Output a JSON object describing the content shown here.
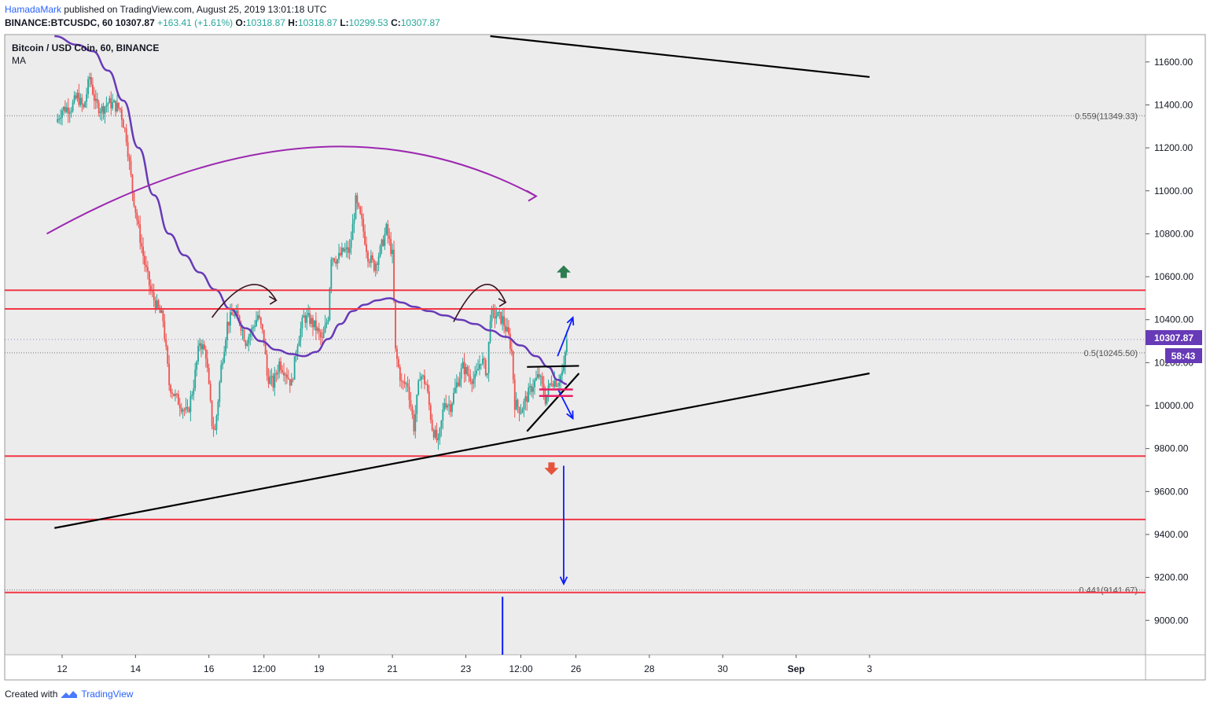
{
  "header": {
    "author": "HamadaMark",
    "published_text": "published on TradingView.com, August 25, 2019 13:01:18 UTC",
    "symbol": "BINANCE:BTCUSDC, 60",
    "last": "10307.87",
    "change": "+163.41 (+1.61%)",
    "o_label": "O:",
    "o_value": "10318.87",
    "h_label": "H:",
    "h_value": "10318.87",
    "l_label": "L:",
    "l_value": "10299.53",
    "c_label": "C:",
    "c_value": "10307.87"
  },
  "chart": {
    "legend_title": "Bitcoin / USD Coin, 60, BINANCE",
    "legend_indicator": "MA",
    "price_badge": "10307.87",
    "countdown_badge": "58:43",
    "colors": {
      "up": "#26a69a",
      "down": "#ef5350",
      "ma": "#673ab7",
      "curve": "#9c27b0",
      "level": "#f23645",
      "trend": "#000000",
      "arrow": "#0d1cff",
      "badge": "#673ab7",
      "magenta": "#e91e63"
    }
  },
  "chart_data": {
    "type": "candlestick",
    "title": "Bitcoin / USD Coin, 60, BINANCE",
    "y_axis": {
      "ticks": [
        9000,
        9200,
        9400,
        9600,
        9800,
        10000,
        10200,
        10400,
        10600,
        10800,
        11000,
        11200,
        11400,
        11600
      ],
      "tick_labels": [
        "9000.00",
        "9200.00",
        "9400.00",
        "9600.00",
        "9800.00",
        "10000.00",
        "10200.00",
        "10400.00",
        "10600.00",
        "10800.00",
        "11000.00",
        "11200.00",
        "11400.00",
        "11600.00"
      ],
      "range": [
        8850,
        11720
      ]
    },
    "x_axis": {
      "tick_labels": [
        "12",
        "14",
        "16",
        "12:00",
        "19",
        "21",
        "23",
        "12:00",
        "26",
        "28",
        "30",
        "Sep",
        "3"
      ],
      "tick_hours": [
        0,
        48,
        96,
        132,
        168,
        216,
        264,
        300,
        336,
        384,
        432,
        480,
        528
      ]
    },
    "horizontal_levels": [
      10537,
      10450,
      9765,
      9470,
      9130
    ],
    "fib_levels": [
      {
        "label": "0.559(11349.33)",
        "price": 11349.33
      },
      {
        "label": "0.5(10245.50)",
        "price": 10245.5
      },
      {
        "label": "0.441(9141.67)",
        "price": 9141.67
      }
    ],
    "trendlines": [
      {
        "name": "upper descending",
        "from": [
          280,
          11720
        ],
        "to": [
          528,
          11530
        ]
      },
      {
        "name": "lower ascending",
        "from": [
          -5,
          9430
        ],
        "to": [
          528,
          10150
        ]
      },
      {
        "name": "triangle top",
        "from": [
          304,
          10180
        ],
        "to": [
          338,
          10185
        ]
      },
      {
        "name": "triangle bottom",
        "from": [
          304,
          9880
        ],
        "to": [
          338,
          10150
        ]
      }
    ],
    "candles_ohlc_anchors": [
      [
        -4,
        11320
      ],
      [
        0,
        11380
      ],
      [
        6,
        11390
      ],
      [
        10,
        11440
      ],
      [
        14,
        11380
      ],
      [
        18,
        11530
      ],
      [
        22,
        11400
      ],
      [
        26,
        11380
      ],
      [
        30,
        11410
      ],
      [
        34,
        11400
      ],
      [
        38,
        11380
      ],
      [
        42,
        11250
      ],
      [
        46,
        11000
      ],
      [
        50,
        10820
      ],
      [
        54,
        10660
      ],
      [
        58,
        10530
      ],
      [
        62,
        10460
      ],
      [
        66,
        10400
      ],
      [
        70,
        10100
      ],
      [
        74,
        10040
      ],
      [
        78,
        10000
      ],
      [
        82,
        9960
      ],
      [
        86,
        10100
      ],
      [
        90,
        10300
      ],
      [
        94,
        10240
      ],
      [
        98,
        9920
      ],
      [
        100,
        9880
      ],
      [
        104,
        10180
      ],
      [
        108,
        10380
      ],
      [
        112,
        10430
      ],
      [
        116,
        10400
      ],
      [
        120,
        10300
      ],
      [
        124,
        10350
      ],
      [
        128,
        10420
      ],
      [
        132,
        10310
      ],
      [
        134,
        10140
      ],
      [
        138,
        10100
      ],
      [
        142,
        10200
      ],
      [
        146,
        10160
      ],
      [
        150,
        10100
      ],
      [
        154,
        10300
      ],
      [
        158,
        10410
      ],
      [
        162,
        10400
      ],
      [
        166,
        10360
      ],
      [
        170,
        10300
      ],
      [
        174,
        10420
      ],
      [
        176,
        10700
      ],
      [
        180,
        10680
      ],
      [
        184,
        10720
      ],
      [
        188,
        10720
      ],
      [
        192,
        10950
      ],
      [
        196,
        10850
      ],
      [
        200,
        10700
      ],
      [
        204,
        10650
      ],
      [
        208,
        10720
      ],
      [
        212,
        10820
      ],
      [
        216,
        10700
      ],
      [
        218,
        10250
      ],
      [
        222,
        10100
      ],
      [
        226,
        10100
      ],
      [
        230,
        9900
      ],
      [
        234,
        10150
      ],
      [
        238,
        10100
      ],
      [
        242,
        9900
      ],
      [
        246,
        9820
      ],
      [
        250,
        10020
      ],
      [
        254,
        10000
      ],
      [
        258,
        10100
      ],
      [
        262,
        10180
      ],
      [
        266,
        10140
      ],
      [
        270,
        10120
      ],
      [
        274,
        10220
      ],
      [
        278,
        10150
      ],
      [
        280,
        10420
      ],
      [
        284,
        10420
      ],
      [
        288,
        10400
      ],
      [
        292,
        10320
      ],
      [
        294,
        10250
      ],
      [
        296,
        10010
      ],
      [
        300,
        9980
      ],
      [
        304,
        10040
      ],
      [
        308,
        10100
      ],
      [
        312,
        10140
      ],
      [
        316,
        10030
      ],
      [
        320,
        10120
      ],
      [
        324,
        10110
      ],
      [
        328,
        10170
      ],
      [
        330,
        10308
      ]
    ],
    "moving_average": [
      [
        -5,
        11720
      ],
      [
        10,
        11680
      ],
      [
        20,
        11650
      ],
      [
        30,
        11560
      ],
      [
        40,
        11420
      ],
      [
        50,
        11200
      ],
      [
        60,
        10980
      ],
      [
        70,
        10800
      ],
      [
        80,
        10700
      ],
      [
        90,
        10620
      ],
      [
        100,
        10540
      ],
      [
        110,
        10450
      ],
      [
        120,
        10360
      ],
      [
        130,
        10300
      ],
      [
        140,
        10260
      ],
      [
        150,
        10240
      ],
      [
        158,
        10230
      ],
      [
        166,
        10250
      ],
      [
        174,
        10310
      ],
      [
        182,
        10380
      ],
      [
        190,
        10440
      ],
      [
        198,
        10470
      ],
      [
        206,
        10490
      ],
      [
        214,
        10500
      ],
      [
        222,
        10480
      ],
      [
        230,
        10460
      ],
      [
        240,
        10440
      ],
      [
        250,
        10420
      ],
      [
        260,
        10400
      ],
      [
        270,
        10380
      ],
      [
        280,
        10350
      ],
      [
        290,
        10320
      ],
      [
        300,
        10280
      ],
      [
        310,
        10230
      ],
      [
        318,
        10180
      ],
      [
        324,
        10120
      ],
      [
        330,
        10100
      ]
    ],
    "annotations": {
      "purple_arc": {
        "from": [
          -10,
          10800
        ],
        "peak": [
          160,
          11200
        ],
        "to": [
          310,
          10975
        ]
      },
      "small_arcs": [
        {
          "from": [
            98,
            10410
          ],
          "peak": [
            122,
            10560
          ],
          "to": [
            140,
            10490
          ]
        },
        {
          "from": [
            256,
            10390
          ],
          "peak": [
            275,
            10560
          ],
          "to": [
            290,
            10480
          ]
        }
      ],
      "up_green_arrow": [
        328,
        10620
      ],
      "down_red_arrow": [
        320,
        9710
      ],
      "blue_arrows": [
        {
          "from": [
            324,
            10230
          ],
          "to": [
            334,
            10410
          ]
        },
        {
          "from": [
            324,
            10080
          ],
          "to": [
            334,
            9940
          ]
        },
        {
          "from": [
            328,
            9720
          ],
          "to": [
            328,
            9170
          ]
        }
      ],
      "magenta_lines": [
        10075,
        10045
      ],
      "blue_vertical": {
        "x": 288,
        "from": 9110,
        "to": 8850
      }
    }
  }
}
